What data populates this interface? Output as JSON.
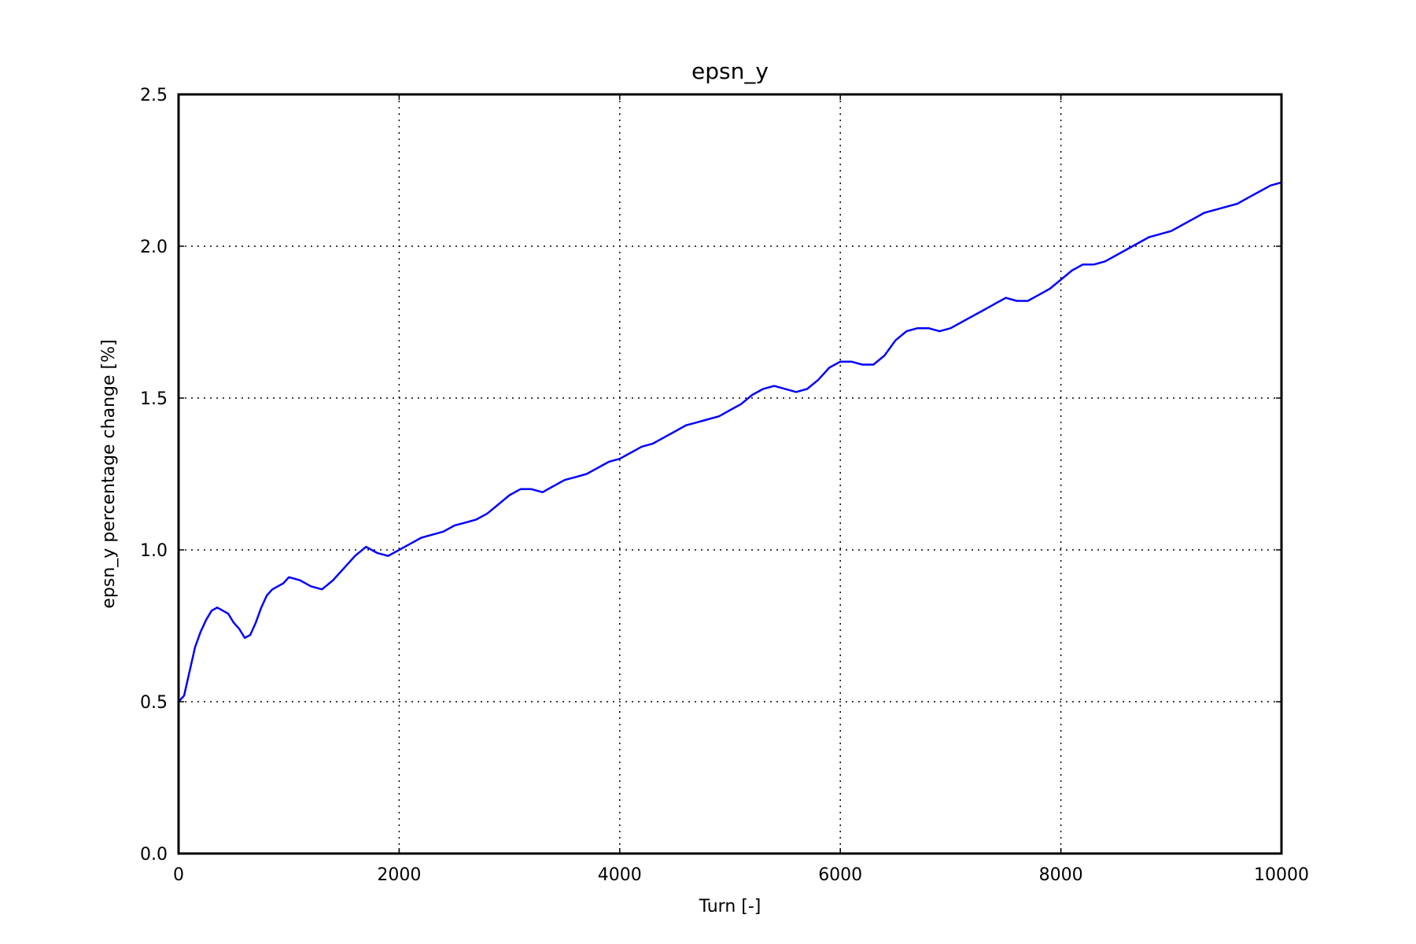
{
  "chart_data": {
    "type": "line",
    "title": "epsn_y",
    "xlabel": "Turn [-]",
    "ylabel": "epsn_y percentage change [%]",
    "xlim": [
      0,
      10000
    ],
    "ylim": [
      0.0,
      2.5
    ],
    "xticks": [
      "0",
      "2000",
      "4000",
      "6000",
      "8000",
      "10000"
    ],
    "yticks": [
      "0.0",
      "0.5",
      "1.0",
      "1.5",
      "2.0",
      "2.5"
    ],
    "grid": true,
    "legend": "none",
    "series": [
      {
        "color": "#0000ff",
        "x": [
          0,
          50,
          100,
          150,
          200,
          250,
          300,
          350,
          400,
          450,
          500,
          550,
          600,
          650,
          700,
          750,
          800,
          850,
          900,
          950,
          1000,
          1100,
          1200,
          1300,
          1400,
          1500,
          1600,
          1700,
          1800,
          1900,
          2000,
          2100,
          2200,
          2300,
          2400,
          2500,
          2600,
          2700,
          2800,
          2900,
          3000,
          3100,
          3200,
          3300,
          3400,
          3500,
          3600,
          3700,
          3800,
          3900,
          4000,
          4100,
          4200,
          4300,
          4400,
          4500,
          4600,
          4700,
          4800,
          4900,
          5000,
          5100,
          5200,
          5300,
          5400,
          5500,
          5600,
          5700,
          5800,
          5900,
          6000,
          6100,
          6200,
          6300,
          6400,
          6500,
          6600,
          6700,
          6800,
          6900,
          7000,
          7100,
          7200,
          7300,
          7400,
          7500,
          7600,
          7700,
          7800,
          7900,
          8000,
          8100,
          8200,
          8300,
          8400,
          8500,
          8600,
          8700,
          8800,
          8900,
          9000,
          9100,
          9200,
          9300,
          9400,
          9500,
          9600,
          9700,
          9800,
          9900,
          10000
        ],
        "y": [
          0.5,
          0.52,
          0.6,
          0.68,
          0.73,
          0.77,
          0.8,
          0.81,
          0.8,
          0.79,
          0.76,
          0.74,
          0.71,
          0.72,
          0.76,
          0.81,
          0.85,
          0.87,
          0.88,
          0.89,
          0.91,
          0.9,
          0.88,
          0.87,
          0.9,
          0.94,
          0.98,
          1.01,
          0.99,
          0.98,
          1.0,
          1.02,
          1.04,
          1.05,
          1.06,
          1.08,
          1.09,
          1.1,
          1.12,
          1.15,
          1.18,
          1.2,
          1.2,
          1.19,
          1.21,
          1.23,
          1.24,
          1.25,
          1.27,
          1.29,
          1.3,
          1.32,
          1.34,
          1.35,
          1.37,
          1.39,
          1.41,
          1.42,
          1.43,
          1.44,
          1.46,
          1.48,
          1.51,
          1.53,
          1.54,
          1.53,
          1.52,
          1.53,
          1.56,
          1.6,
          1.62,
          1.62,
          1.61,
          1.61,
          1.64,
          1.69,
          1.72,
          1.73,
          1.73,
          1.72,
          1.73,
          1.75,
          1.77,
          1.79,
          1.81,
          1.83,
          1.82,
          1.82,
          1.84,
          1.86,
          1.89,
          1.92,
          1.94,
          1.94,
          1.95,
          1.97,
          1.99,
          2.01,
          2.03,
          2.04,
          2.05,
          2.07,
          2.09,
          2.11,
          2.12,
          2.13,
          2.14,
          2.16,
          2.18,
          2.2,
          2.21
        ]
      }
    ]
  }
}
